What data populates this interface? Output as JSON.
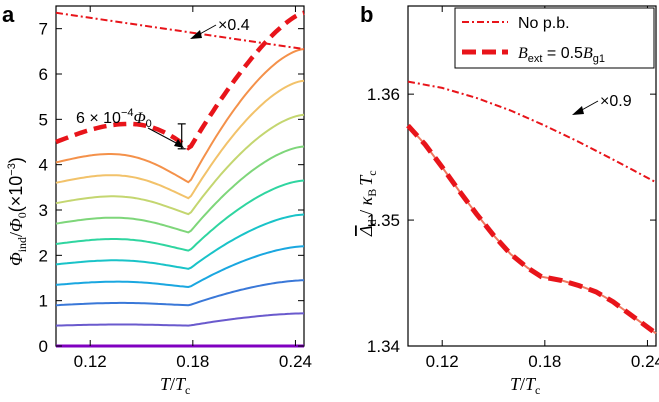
{
  "chart_data": [
    {
      "panel_label": "a",
      "type": "line",
      "xlabel_main": "T",
      "xlabel_sep": "/",
      "xlabel_den": "T",
      "xlabel_den_sub": "c",
      "ylabel_main": "Φ",
      "ylabel_sub": "ind",
      "ylabel_sep": "/",
      "ylabel_den": "Φ",
      "ylabel_den_sub": "0",
      "ylabel_units": "(×10",
      "ylabel_units_exp": "−3",
      "ylabel_units_close": ")",
      "xlim": [
        0.1,
        0.245
      ],
      "ylim": [
        0,
        7.5
      ],
      "xticks": [
        0.12,
        0.18,
        0.24
      ],
      "xtick_labels": [
        "0.12",
        "0.18",
        "0.24"
      ],
      "yticks": [
        0,
        1,
        2,
        3,
        4,
        5,
        6,
        7
      ],
      "ytick_labels": [
        "0",
        "1",
        "2",
        "3",
        "4",
        "5",
        "6",
        "7"
      ],
      "curves": [
        {
          "color": "#8000c0",
          "left": 0.0,
          "dip": 0.0,
          "right": 0.0
        },
        {
          "color": "#6a5acd",
          "left": 0.45,
          "dip": 0.45,
          "right": 0.72
        },
        {
          "color": "#3a78d8",
          "left": 0.9,
          "dip": 0.9,
          "right": 1.45
        },
        {
          "color": "#1aa7e0",
          "left": 1.35,
          "dip": 1.3,
          "right": 2.2
        },
        {
          "color": "#19c3c8",
          "left": 1.8,
          "dip": 1.7,
          "right": 2.9
        },
        {
          "color": "#2fd5a0",
          "left": 2.25,
          "dip": 2.1,
          "right": 3.65
        },
        {
          "color": "#7ed67a",
          "left": 2.7,
          "dip": 2.5,
          "right": 4.4
        },
        {
          "color": "#c4d670",
          "left": 3.15,
          "dip": 2.9,
          "right": 5.1
        },
        {
          "color": "#f2c26a",
          "left": 3.6,
          "dip": 3.25,
          "right": 5.85
        },
        {
          "color": "#f4914a",
          "left": 4.05,
          "dip": 3.6,
          "right": 6.55
        }
      ],
      "dashed_curve": {
        "color": "#e8141a",
        "left": 4.5,
        "peak": 4.9,
        "dip": 4.35,
        "right": 7.35
      },
      "dashdot_curve": {
        "color": "#e8141a",
        "left": 7.35,
        "right": 6.55
      },
      "annotations": {
        "scale": "×0.4",
        "flux_coef": "6 × 10",
        "flux_exp": "−4",
        "flux_sym": "Φ",
        "flux_sub": "0"
      }
    },
    {
      "panel_label": "b",
      "type": "line",
      "xlabel_main": "T",
      "xlabel_sep": "/",
      "xlabel_den": "T",
      "xlabel_den_sub": "c",
      "ylabel_main": "Δ",
      "ylabel_sub": "d",
      "ylabel_sep": " / ",
      "ylabel_den": "κ",
      "ylabel_den_sub": "B",
      "ylabel_den2": "T",
      "ylabel_den2_sub": "c",
      "xlim": [
        0.1,
        0.245
      ],
      "ylim": [
        1.34,
        1.367
      ],
      "xticks": [
        0.12,
        0.18,
        0.24
      ],
      "xtick_labels": [
        "0.12",
        "0.18",
        "0.24"
      ],
      "yticks": [
        1.34,
        1.35,
        1.36
      ],
      "ytick_labels": [
        "1.34",
        "1.35",
        "1.36"
      ],
      "series": [
        {
          "name": "No p.b.",
          "style": "dashdot",
          "color": "#e8141a",
          "x": [
            0.1,
            0.12,
            0.14,
            0.16,
            0.18,
            0.2,
            0.22,
            0.245
          ],
          "y": [
            1.361,
            1.3605,
            1.3597,
            1.3587,
            1.3575,
            1.3562,
            1.3548,
            1.353
          ]
        },
        {
          "name": "B_ext = 0.5B_g1",
          "style": "dashed",
          "color": "#e8141a",
          "x": [
            0.1,
            0.11,
            0.12,
            0.13,
            0.14,
            0.15,
            0.16,
            0.17,
            0.178,
            0.19,
            0.2,
            0.21,
            0.22,
            0.23,
            0.245
          ],
          "y": [
            1.3575,
            1.356,
            1.3542,
            1.3523,
            1.3505,
            1.3488,
            1.3473,
            1.3462,
            1.3455,
            1.3452,
            1.3448,
            1.3443,
            1.3435,
            1.3425,
            1.341
          ]
        }
      ],
      "legend": {
        "placement": "top-right",
        "entry1": "No p.b.",
        "entry2_pre": "B",
        "entry2_sub": "ext",
        "entry2_mid": " = 0.5",
        "entry2_B": "B",
        "entry2_sub2": "g1"
      },
      "annotations": {
        "scale": "×0.9"
      }
    }
  ]
}
